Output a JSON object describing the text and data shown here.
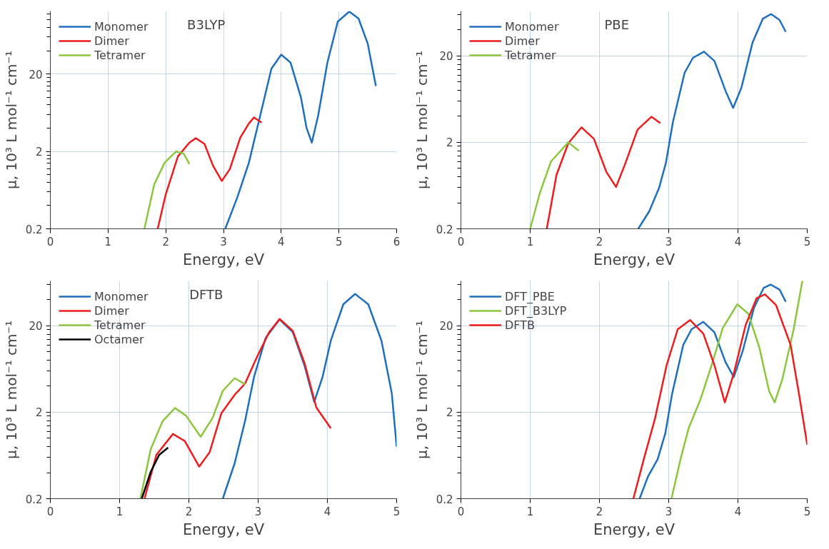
{
  "chart_data": [
    {
      "type": "line",
      "title": "B3LYP",
      "xlabel": "Energy, eV",
      "ylabel": "μ, 10³ L mol⁻¹ cm⁻¹",
      "log": "y",
      "grid": true,
      "legend": "top left",
      "line_style": "solid",
      "marker": "none",
      "xlim": [
        0,
        6
      ],
      "xticks": [
        0,
        1,
        2,
        3,
        4,
        5,
        6
      ],
      "ylim": [
        0.2,
        130
      ],
      "yticks": [
        0.2,
        2,
        20
      ],
      "series": [
        {
          "name": "Monomer",
          "color": "#1f6fbf",
          "x": [
            3.03,
            3.24,
            3.44,
            3.65,
            3.83,
            4.0,
            4.16,
            4.34,
            4.44,
            4.53,
            4.64,
            4.8,
            4.98,
            5.18,
            5.34,
            5.5,
            5.64
          ],
          "values": [
            0.2,
            0.51,
            1.43,
            6.4,
            23.4,
            35.6,
            28.2,
            10.1,
            4.0,
            2.6,
            5.8,
            28,
            95,
            128,
            104,
            49,
            14
          ]
        },
        {
          "name": "Dimer",
          "color": "#ee1c1c",
          "x": [
            1.86,
            2.0,
            2.21,
            2.41,
            2.52,
            2.67,
            2.82,
            2.97,
            3.11,
            3.29,
            3.44,
            3.53,
            3.66
          ],
          "values": [
            0.2,
            0.56,
            1.72,
            2.6,
            2.96,
            2.5,
            1.3,
            0.83,
            1.18,
            3.0,
            4.6,
            5.5,
            4.7
          ]
        },
        {
          "name": "Tetramer",
          "color": "#8cc63e",
          "x": [
            1.63,
            1.8,
            1.98,
            2.18,
            2.31,
            2.41
          ],
          "values": [
            0.2,
            0.75,
            1.43,
            2.0,
            1.87,
            1.37
          ]
        }
      ]
    },
    {
      "type": "line",
      "title": "PBE",
      "xlabel": "Energy, eV",
      "ylabel": "μ, 10³ L mol⁻¹ cm⁻¹",
      "log": "y",
      "grid": true,
      "legend": "top left",
      "line_style": "solid",
      "marker": "none",
      "xlim": [
        0,
        5
      ],
      "xticks": [
        0,
        1,
        2,
        3,
        4,
        5
      ],
      "ylim": [
        0.2,
        66
      ],
      "yticks": [
        0.2,
        2,
        20
      ],
      "series": [
        {
          "name": "Monomer",
          "color": "#1f6fbf",
          "x": [
            2.56,
            2.72,
            2.86,
            2.96,
            3.06,
            3.23,
            3.35,
            3.51,
            3.66,
            3.82,
            3.93,
            4.05,
            4.21,
            4.36,
            4.48,
            4.6,
            4.69
          ],
          "values": [
            0.2,
            0.32,
            0.59,
            1.16,
            3.42,
            12.8,
            19,
            22.4,
            17.5,
            7.9,
            5.0,
            8.6,
            28.4,
            54,
            61,
            52,
            38
          ]
        },
        {
          "name": "Dimer",
          "color": "#ee1c1c",
          "x": [
            1.24,
            1.38,
            1.55,
            1.74,
            1.92,
            2.1,
            2.24,
            2.37,
            2.55,
            2.75,
            2.88
          ],
          "values": [
            0.2,
            0.84,
            1.95,
            2.98,
            2.2,
            0.91,
            0.61,
            1.12,
            2.8,
            3.95,
            3.33
          ]
        },
        {
          "name": "Tetramer",
          "color": "#8cc63e",
          "x": [
            1.0,
            1.14,
            1.3,
            1.55,
            1.7
          ],
          "values": [
            0.2,
            0.52,
            1.2,
            2.0,
            1.6
          ]
        }
      ]
    },
    {
      "type": "line",
      "title": "DFTB",
      "xlabel": "Energy, eV",
      "ylabel": "μ, 10³ L mol⁻¹ cm⁻¹",
      "log": "y",
      "grid": true,
      "legend": "top left",
      "line_style": "solid",
      "marker": "none",
      "xlim": [
        0,
        5
      ],
      "xticks": [
        0,
        1,
        2,
        3,
        4,
        5
      ],
      "ylim": [
        0.2,
        66
      ],
      "yticks": [
        0.2,
        2,
        20
      ],
      "series": [
        {
          "name": "Monomer",
          "color": "#1f6fbf",
          "x": [
            2.49,
            2.66,
            2.81,
            2.94,
            3.11,
            3.31,
            3.5,
            3.67,
            3.81,
            3.93,
            4.05,
            4.23,
            4.4,
            4.59,
            4.78,
            4.93,
            5.0
          ],
          "values": [
            0.2,
            0.51,
            1.57,
            5.1,
            14.5,
            23.6,
            16.9,
            6.9,
            2.63,
            5.1,
            13.5,
            35.4,
            46.7,
            35.4,
            13.5,
            3.3,
            0.8
          ]
        },
        {
          "name": "Dimer",
          "color": "#ee1c1c",
          "x": [
            1.36,
            1.53,
            1.77,
            1.94,
            2.15,
            2.3,
            2.47,
            2.66,
            2.81,
            2.98,
            3.16,
            3.31,
            3.5,
            3.67,
            3.84,
            4.05
          ],
          "values": [
            0.2,
            0.64,
            1.12,
            0.93,
            0.47,
            0.69,
            1.95,
            3.17,
            4.27,
            8.6,
            16.9,
            24,
            17.5,
            7.4,
            2.27,
            1.3
          ]
        },
        {
          "name": "Tetramer",
          "color": "#8cc63e",
          "x": [
            1.3,
            1.45,
            1.62,
            1.8,
            1.96,
            2.17,
            2.34,
            2.49,
            2.66,
            2.82
          ],
          "values": [
            0.2,
            0.75,
            1.57,
            2.24,
            1.82,
            1.04,
            1.7,
            3.53,
            4.95,
            4.18
          ]
        },
        {
          "name": "Octamer",
          "color": "#000000",
          "x": [
            1.32,
            1.45,
            1.57,
            1.7
          ],
          "values": [
            0.2,
            0.41,
            0.64,
            0.78
          ]
        }
      ]
    },
    {
      "type": "line",
      "xlabel": "Energy, eV",
      "ylabel": "μ, 10³ L mol⁻¹ cm⁻¹",
      "log": "y",
      "grid": true,
      "legend": "top left",
      "line_style": "solid",
      "marker": "none",
      "xlim": [
        0,
        5
      ],
      "xticks": [
        0,
        1,
        2,
        3,
        4,
        5
      ],
      "ylim": [
        0.2,
        66
      ],
      "yticks": [
        0.2,
        2,
        20
      ],
      "series": [
        {
          "name": "DFT_PBE",
          "color": "#1f6fbf",
          "x": [
            2.58,
            2.7,
            2.84,
            2.95,
            3.05,
            3.21,
            3.33,
            3.5,
            3.66,
            3.82,
            3.94,
            4.07,
            4.23,
            4.37,
            4.47,
            4.6,
            4.69
          ],
          "values": [
            0.2,
            0.36,
            0.57,
            1.13,
            3.28,
            12,
            18.2,
            22.2,
            16.8,
            7.6,
            5.1,
            10.3,
            32,
            54.6,
            60,
            52.5,
            37.9
          ]
        },
        {
          "name": "DFT_B3LYP",
          "color": "#8cc63e",
          "x": [
            3.04,
            3.17,
            3.29,
            3.46,
            3.62,
            3.78,
            3.99,
            4.15,
            4.31,
            4.45,
            4.53,
            4.64,
            4.8,
            4.93
          ],
          "values": [
            0.2,
            0.57,
            1.32,
            2.83,
            7.0,
            18.8,
            35.4,
            27.5,
            11.1,
            3.5,
            2.6,
            4.8,
            17.5,
            66
          ]
        },
        {
          "name": "DFTB",
          "color": "#ee1c1c",
          "x": [
            2.49,
            2.64,
            2.8,
            2.97,
            3.13,
            3.31,
            3.5,
            3.66,
            3.81,
            3.94,
            4.11,
            4.27,
            4.39,
            4.55,
            4.76,
            4.88,
            5.0
          ],
          "values": [
            0.2,
            0.57,
            1.66,
            7.0,
            18.2,
            23.3,
            16.2,
            7.0,
            2.6,
            5.6,
            20.3,
            41.8,
            46.1,
            34.6,
            12,
            3.3,
            0.84
          ]
        }
      ]
    }
  ]
}
